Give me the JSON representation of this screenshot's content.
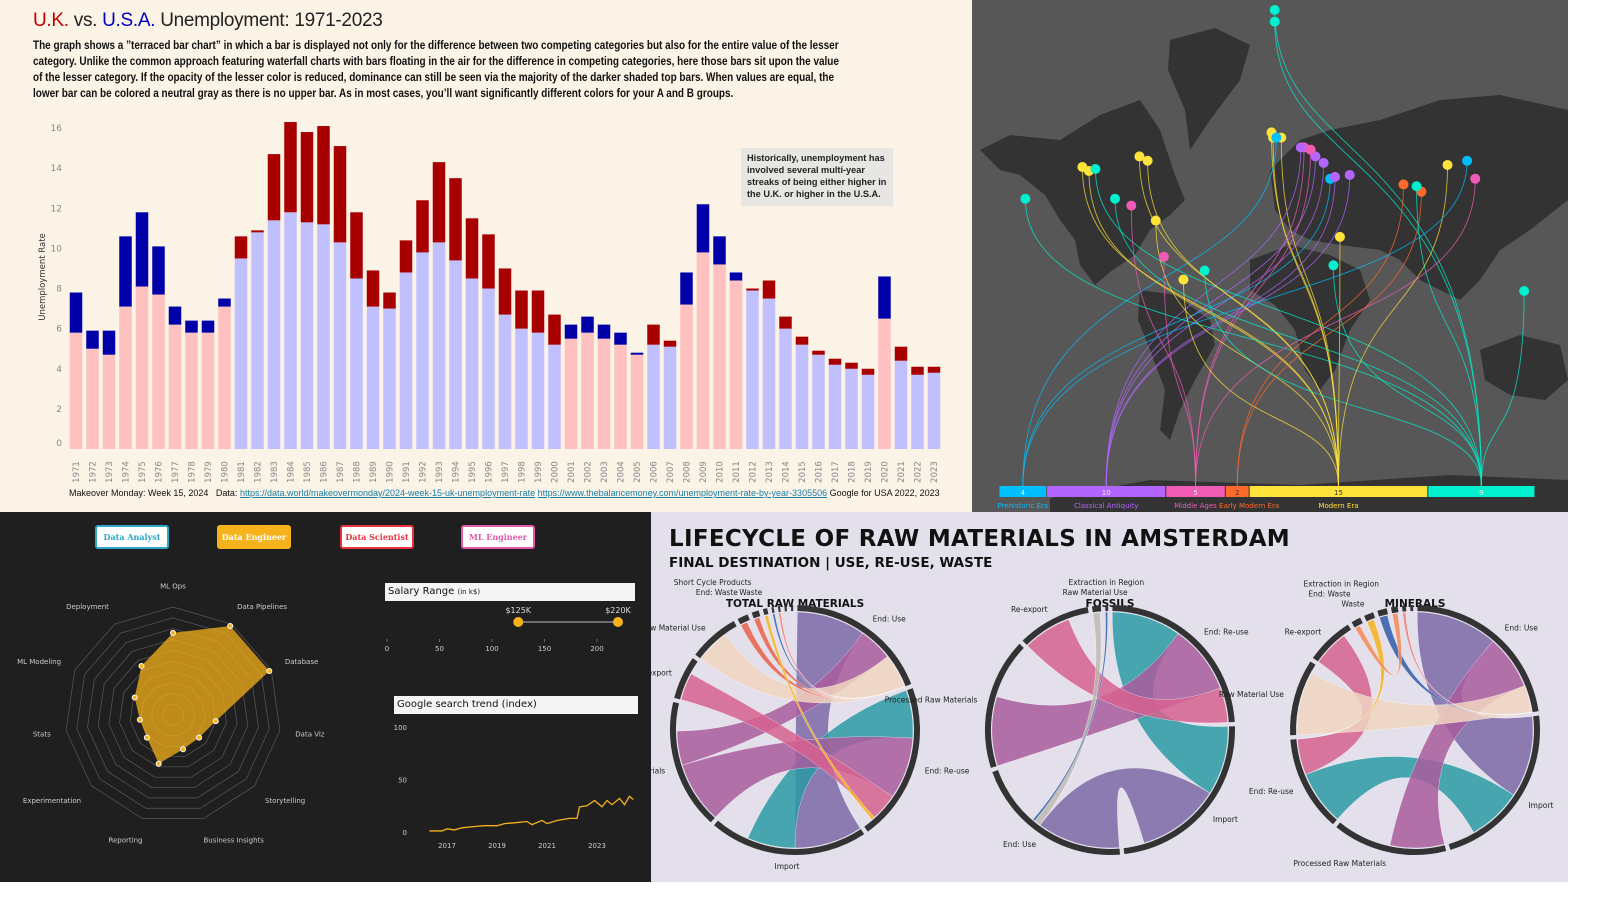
{
  "unemployment": {
    "title_uk": "U.K.",
    "title_vs": " vs. ",
    "title_usa": "U.S.A.",
    "title_rest": " Unemployment: 1971-2023",
    "description": [
      "The graph shows a ”terraced bar chart” in which a bar is displayed not only for the difference between two competing categories but also for the entire value of the lesser",
      "category.  Unlike the common approach featuring waterfall charts  with bars floating in the air for the difference in competing categories, here those bars sit upon the value",
      "of the lesser category. If the opacity of the lesser color is reduced, dominance can still be seen via the majority of the darker shaded top bars. When values are equal, the",
      "lower bar can be colored a neutral gray as there is no upper bar.  As in most cases, you’ll want significantly different colors for your A and B groups."
    ],
    "annotation": "Historically, unemployment has involved several multi-year streaks of being either higher in the U.K. or higher in the U.S.A.",
    "footer_prefix": "Makeover Monday: Week 15, 2024   Data: ",
    "footer_link1": "https://data.world/makeovermonday/2024-week-15-uk-unemployment-rate",
    "footer_link2": "https://www.thebalancemoney.com/unemployment-rate-by-year-3305506",
    "footer_suffix": " Google for USA 2022, 2023",
    "colors": {
      "uk_high": "#a80000",
      "uk_low": "#ffc0c0",
      "us_high": "#0000a8",
      "us_low": "#c0c0ff",
      "uk_title": "#c00000",
      "us_title": "#0000c0"
    }
  },
  "chart_data": [
    {
      "type": "bar",
      "subtype": "terraced",
      "ylabel": "Unemployment Rate",
      "ylim": [
        0,
        16.5
      ],
      "yticks": [
        0,
        2,
        4,
        6,
        8,
        10,
        12,
        14,
        16
      ],
      "categories": [
        "1971",
        "1972",
        "1973",
        "1974",
        "1975",
        "1976",
        "1977",
        "1978",
        "1979",
        "1980",
        "1981",
        "1982",
        "1983",
        "1984",
        "1985",
        "1986",
        "1987",
        "1988",
        "1989",
        "1990",
        "1991",
        "1992",
        "1993",
        "1994",
        "1995",
        "1996",
        "1997",
        "1998",
        "1999",
        "2000",
        "2001",
        "2002",
        "2003",
        "2004",
        "2005",
        "2006",
        "2007",
        "2008",
        "2009",
        "2010",
        "2011",
        "2012",
        "2013",
        "2014",
        "2015",
        "2016",
        "2017",
        "2018",
        "2019",
        "2020",
        "2021",
        "2022",
        "2023"
      ],
      "series": [
        {
          "name": "U.K.",
          "values": [
            5.8,
            5.0,
            4.7,
            7.1,
            8.1,
            7.7,
            6.2,
            5.8,
            5.8,
            7.1,
            10.6,
            10.9,
            14.7,
            16.3,
            15.8,
            16.1,
            15.1,
            11.8,
            8.9,
            7.8,
            10.4,
            12.4,
            14.3,
            13.5,
            11.5,
            10.7,
            9.0,
            7.9,
            7.9,
            6.7,
            5.5,
            5.8,
            5.5,
            5.2,
            4.7,
            6.2,
            5.4,
            7.2,
            9.8,
            9.2,
            8.4,
            8.0,
            8.4,
            6.6,
            5.6,
            4.9,
            4.5,
            4.3,
            4.0,
            6.5,
            5.1,
            4.1,
            4.1
          ]
        },
        {
          "name": "U.S.A.",
          "values": [
            7.8,
            5.9,
            5.9,
            10.6,
            11.8,
            10.1,
            7.1,
            6.4,
            6.4,
            7.5,
            9.5,
            10.8,
            11.4,
            11.8,
            11.3,
            11.2,
            10.3,
            8.5,
            7.1,
            7.0,
            8.8,
            9.8,
            10.3,
            9.4,
            8.5,
            8.0,
            6.7,
            6.0,
            5.8,
            5.2,
            6.2,
            6.6,
            6.2,
            5.8,
            4.8,
            5.2,
            5.1,
            8.8,
            12.2,
            10.6,
            8.8,
            7.9,
            7.5,
            6.0,
            5.2,
            4.7,
            4.2,
            4.0,
            3.7,
            8.6,
            4.4,
            3.7,
            3.8
          ]
        }
      ]
    },
    {
      "type": "radar",
      "axes": [
        "ML Ops",
        "Data Pipelines",
        "Database",
        "Data Viz",
        "Storytelling",
        "Business Insights",
        "Reporting",
        "Experimentation",
        "Stats",
        "ML Modeling",
        "Deployment"
      ],
      "values": [
        7.6,
        9.8,
        9.8,
        4.0,
        3.2,
        3.3,
        4.7,
        3.2,
        3.1,
        3.9,
        5.4
      ],
      "max": 10,
      "rings": 10,
      "color": "#f6b21b"
    },
    {
      "type": "line",
      "title": "Google search trend (index)",
      "yticks": [
        0,
        50,
        100
      ],
      "xticks": [
        "2017",
        "2019",
        "2021",
        "2023"
      ],
      "ylim": [
        0,
        100
      ],
      "points": [
        [
          2016.3,
          1
        ],
        [
          2016.8,
          1
        ],
        [
          2017.0,
          3
        ],
        [
          2017.3,
          2
        ],
        [
          2017.6,
          4
        ],
        [
          2018.0,
          5
        ],
        [
          2018.5,
          6
        ],
        [
          2019.0,
          6
        ],
        [
          2019.3,
          8
        ],
        [
          2019.8,
          9
        ],
        [
          2020.2,
          10
        ],
        [
          2020.4,
          7
        ],
        [
          2020.8,
          11
        ],
        [
          2021.0,
          8
        ],
        [
          2021.4,
          11
        ],
        [
          2021.9,
          13
        ],
        [
          2022.2,
          13
        ],
        [
          2022.3,
          24
        ],
        [
          2022.6,
          25
        ],
        [
          2022.9,
          30
        ],
        [
          2023.2,
          24
        ],
        [
          2023.4,
          30
        ],
        [
          2023.6,
          26
        ],
        [
          2023.9,
          32
        ],
        [
          2024.1,
          26
        ],
        [
          2024.3,
          34
        ],
        [
          2024.45,
          31
        ]
      ],
      "color": "#f6b21b"
    }
  ],
  "map": {
    "eras": [
      {
        "label": "Prehistoric Era",
        "count": 4,
        "color": "#00bfff"
      },
      {
        "label": "Classical Antiquity",
        "count": 10,
        "color": "#b266ff"
      },
      {
        "label": "Middle Ages",
        "count": 5,
        "color": "#f05cb5"
      },
      {
        "label": "Early Modern Era",
        "count": 2,
        "color": "#ff6a2a"
      },
      {
        "label": "Modern Era",
        "count": 15,
        "color": "#ffe23a"
      },
      {
        "label": "",
        "count": 9,
        "color": "#00f0d0"
      }
    ],
    "points": [
      [
        5,
        -2,
        90
      ],
      [
        5,
        -2,
        78
      ],
      [
        4,
        -4,
        52
      ],
      [
        4,
        -3,
        50
      ],
      [
        4,
        2,
        50
      ],
      [
        0,
        -1,
        50
      ],
      [
        2,
        16,
        46
      ],
      [
        1,
        14,
        46
      ],
      [
        1,
        23,
        42
      ],
      [
        1,
        28,
        39
      ],
      [
        0,
        32,
        31
      ],
      [
        1,
        35,
        32
      ],
      [
        1,
        44,
        33
      ],
      [
        2,
        20,
        45
      ],
      [
        4,
        -120,
        37
      ],
      [
        4,
        -116,
        35
      ],
      [
        5,
        -112,
        36
      ],
      [
        4,
        -85,
        42
      ],
      [
        4,
        -80,
        40
      ],
      [
        5,
        -155,
        20
      ],
      [
        5,
        -100,
        20
      ],
      [
        2,
        -90,
        16
      ],
      [
        4,
        -75,
        7
      ],
      [
        2,
        -70,
        -15
      ],
      [
        5,
        -45,
        -23
      ],
      [
        4,
        -58,
        -28
      ],
      [
        5,
        34,
        -20
      ],
      [
        4,
        38,
        -3
      ],
      [
        3,
        77,
        28
      ],
      [
        3,
        88,
        24
      ],
      [
        5,
        85,
        27
      ],
      [
        4,
        104,
        38
      ],
      [
        0,
        116,
        40
      ],
      [
        2,
        121,
        31
      ],
      [
        5,
        151,
        -34
      ]
    ]
  },
  "jobs": {
    "roles": [
      {
        "label": "Data Analyst",
        "color": "#2aa7c9",
        "active": false
      },
      {
        "label": "Data Engineer",
        "color": "#f6b21b",
        "active": true
      },
      {
        "label": "Data Scientist",
        "color": "#e8333f",
        "active": false
      },
      {
        "label": "ML Engineer",
        "color": "#e25aa7",
        "active": false
      }
    ],
    "salary_title": "Salary Range",
    "salary_unit": "(in k$)",
    "salary_min": 125,
    "salary_max": 220,
    "salary_min_label": "$125K",
    "salary_max_label": "$220K",
    "salary_ticks": [
      0,
      50,
      100,
      150,
      200
    ]
  },
  "lifecycle": {
    "title": "LIFECYCLE OF RAW MATERIALS IN AMSTERDAM",
    "subtitle": "FINAL DESTINATION | USE, RE-USE, WASTE",
    "diagrams": [
      {
        "title": "TOTAL RAW MATERIALS",
        "segments": [
          [
            "End: Use",
            20
          ],
          [
            "End: Re-use",
            22
          ],
          [
            "Import",
            22
          ],
          [
            "Processed Raw Materials",
            18
          ],
          [
            "Re-export",
            6
          ],
          [
            "Raw Material Use",
            7
          ],
          [
            "End: Waste",
            1.5
          ],
          [
            "Short Cycle Products",
            1
          ],
          [
            "Waste",
            0.6
          ],
          [
            "",
            0.3
          ],
          [
            "",
            0.3
          ],
          [
            "",
            0.3
          ],
          [
            "",
            0.3
          ]
        ],
        "flows": [
          [
            2,
            0,
            10,
            "#7b68a6"
          ],
          [
            2,
            1,
            7,
            "#2a9aa5"
          ],
          [
            3,
            1,
            9,
            "#a95c9e"
          ],
          [
            3,
            0,
            5,
            "#a95c9e"
          ],
          [
            4,
            1,
            4,
            "#d6618f"
          ],
          [
            5,
            0,
            5,
            "#f0d5c0"
          ],
          [
            6,
            0,
            1,
            "#e8604a"
          ],
          [
            7,
            0,
            0.8,
            "#e8604a"
          ],
          [
            8,
            1,
            0.5,
            "#f6b21b"
          ],
          [
            9,
            0,
            0.3,
            "#2f5aa8"
          ],
          [
            10,
            0,
            0.3,
            "#f07a7a"
          ]
        ]
      },
      {
        "title": "FOSSILS",
        "segments": [
          [
            "End: Re-use",
            25
          ],
          [
            "Import",
            25
          ],
          [
            "End: Use",
            22
          ],
          [
            "Processed Raw Materials",
            18
          ],
          [
            "Re-export",
            10
          ],
          [
            "Raw Material Use",
            1.2
          ],
          [
            "Extraction in Region",
            0.4
          ]
        ],
        "flows": [
          [
            1,
            0,
            10,
            "#2a9aa5"
          ],
          [
            1,
            2,
            12,
            "#7b68a6"
          ],
          [
            3,
            0,
            10,
            "#a95c9e"
          ],
          [
            4,
            0,
            7,
            "#d6618f"
          ],
          [
            5,
            2,
            1,
            "#bdb8b0"
          ],
          [
            6,
            2,
            0.3,
            "#2f5aa8"
          ]
        ]
      },
      {
        "title": "MINERALS",
        "segments": [
          [
            "End: Use",
            18
          ],
          [
            "Import",
            18
          ],
          [
            "Processed Raw Materials",
            12
          ],
          [
            "End: Re-use",
            10
          ],
          [
            "Raw Material Use",
            8
          ],
          [
            "Re-export",
            5
          ],
          [
            "End: Waste",
            1
          ],
          [
            "Waste",
            1
          ],
          [
            "Extraction in Region",
            1
          ],
          [
            "",
            0.7
          ],
          [
            "",
            0.4
          ],
          [
            "",
            0.3
          ]
        ],
        "flows": [
          [
            1,
            0,
            9,
            "#7b68a6"
          ],
          [
            1,
            3,
            6,
            "#2a9aa5"
          ],
          [
            2,
            0,
            6,
            "#a95c9e"
          ],
          [
            5,
            3,
            4,
            "#d6618f"
          ],
          [
            4,
            0,
            7,
            "#f0d5c0"
          ],
          [
            8,
            0,
            0.9,
            "#2f5aa8"
          ],
          [
            7,
            3,
            0.8,
            "#f6b21b"
          ],
          [
            6,
            9,
            0.6,
            "#f4885a"
          ],
          [
            10,
            0,
            0.3,
            "#f07a7a"
          ]
        ]
      }
    ]
  }
}
